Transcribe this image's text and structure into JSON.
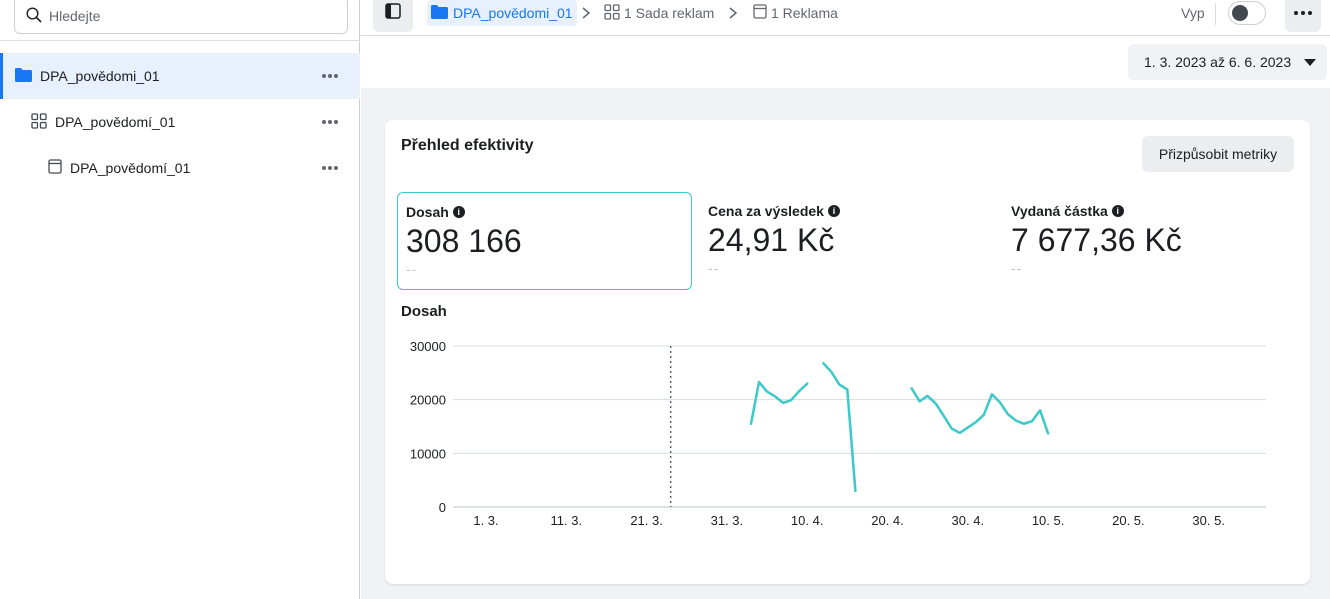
{
  "search": {
    "placeholder": "Hledejte",
    "value": ""
  },
  "tree": {
    "campaign": {
      "label": "DPA_povědomi_01",
      "icon": "folder-icon"
    },
    "adset": {
      "label": "DPA_povědomí_01",
      "icon": "grid-icon"
    },
    "ad": {
      "label": "DPA_povědomí_01",
      "icon": "ad-icon"
    }
  },
  "breadcrumb": {
    "campaign": "DPA_povědomi_01",
    "adset": "1 Sada reklam",
    "ad": "1 Reklama"
  },
  "toggle": {
    "label": "Vyp",
    "on": false
  },
  "date_range": "1. 3. 2023 až 6. 6. 2023",
  "card": {
    "title": "Přehled efektivity",
    "customize_label": "Přizpůsobit metriky"
  },
  "metrics": [
    {
      "label": "Dosah",
      "value": "308 166",
      "compare": "--",
      "active": true
    },
    {
      "label": "Cena za výsledek",
      "value": "24,91 Kč",
      "compare": "--",
      "active": false
    },
    {
      "label": "Vydaná částka",
      "value": "7 677,36 Kč",
      "compare": "--",
      "active": false
    }
  ],
  "chart_title": "Dosah",
  "colors": {
    "accent": "#1877f2",
    "series": "#3bc9c9",
    "active_border": "#3bc9c9"
  },
  "chart_data": {
    "type": "line",
    "title": "Dosah",
    "xlabel": "",
    "ylabel": "",
    "ylim": [
      0,
      30000
    ],
    "y_ticks": [
      0,
      10000,
      20000,
      30000
    ],
    "y_tick_labels": [
      "0",
      "10000",
      "20000",
      "30000"
    ],
    "x_range": [
      "2023-03-01",
      "2023-06-06"
    ],
    "x_ticks": [
      {
        "date": "2023-03-01",
        "label": "1. 3."
      },
      {
        "date": "2023-03-11",
        "label": "11. 3."
      },
      {
        "date": "2023-03-21",
        "label": "21. 3."
      },
      {
        "date": "2023-03-31",
        "label": "31. 3."
      },
      {
        "date": "2023-04-10",
        "label": "10. 4."
      },
      {
        "date": "2023-04-20",
        "label": "20. 4."
      },
      {
        "date": "2023-04-30",
        "label": "30. 4."
      },
      {
        "date": "2023-05-10",
        "label": "10. 5."
      },
      {
        "date": "2023-05-20",
        "label": "20. 5."
      },
      {
        "date": "2023-05-30",
        "label": "30. 5."
      }
    ],
    "marker_date": "2023-03-24",
    "grid": true,
    "series": [
      {
        "segments": [
          [
            [
              "2023-04-03",
              15500
            ],
            [
              "2023-04-04",
              23300
            ],
            [
              "2023-04-05",
              21500
            ],
            [
              "2023-04-06",
              20600
            ],
            [
              "2023-04-07",
              19400
            ],
            [
              "2023-04-08",
              19900
            ],
            [
              "2023-04-09",
              21600
            ],
            [
              "2023-04-10",
              23000
            ]
          ],
          [
            [
              "2023-04-12",
              26800
            ],
            [
              "2023-04-13",
              25200
            ],
            [
              "2023-04-14",
              22800
            ],
            [
              "2023-04-15",
              21900
            ],
            [
              "2023-04-16",
              3000
            ]
          ],
          [
            [
              "2023-04-23",
              22100
            ],
            [
              "2023-04-24",
              19700
            ],
            [
              "2023-04-25",
              20700
            ],
            [
              "2023-04-26",
              19300
            ],
            [
              "2023-04-27",
              17000
            ],
            [
              "2023-04-28",
              14600
            ],
            [
              "2023-04-29",
              13800
            ],
            [
              "2023-04-30",
              14800
            ],
            [
              "2023-05-01",
              15800
            ],
            [
              "2023-05-02",
              17200
            ],
            [
              "2023-05-03",
              21000
            ],
            [
              "2023-05-04",
              19500
            ],
            [
              "2023-05-05",
              17300
            ],
            [
              "2023-05-06",
              16100
            ],
            [
              "2023-05-07",
              15500
            ],
            [
              "2023-05-08",
              16000
            ],
            [
              "2023-05-09",
              18000
            ],
            [
              "2023-05-10",
              13700
            ]
          ]
        ]
      }
    ]
  }
}
